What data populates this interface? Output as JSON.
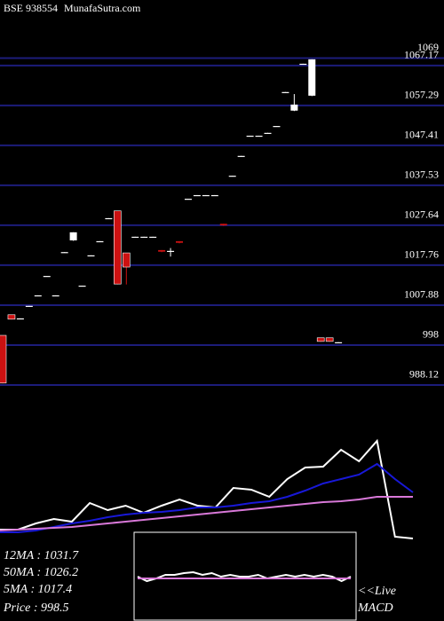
{
  "chart_data": [
    {
      "type": "candlestick",
      "title": "BSE 938554",
      "subtitle": "MunafaSutra.com",
      "open": [
        1000.4,
        1005.5,
        1004.6,
        1007.7,
        1010.3,
        1015.1,
        1010.3,
        1021,
        1023.9,
        1012.7,
        1020.2,
        1023.7,
        1029.4,
        1031.2,
        1020.8,
        1024.8,
        1024.8,
        1024.8,
        1021.5,
        1021.3,
        1023.7,
        1034.2,
        1035.1,
        1035.1,
        1035.1,
        1028,
        1039.9,
        1044.8,
        1049.8,
        1049.8,
        1050.5,
        1052.2,
        1060.6,
        1056,
        1067.6,
        1059.7,
        999.8,
        999.8,
        998.7
      ],
      "high": [
        1000.4,
        1005.5,
        1004.6,
        1007.7,
        1010.3,
        1015.1,
        1010.3,
        1021,
        1025.9,
        1012.7,
        1020.2,
        1023.7,
        1029.4,
        1031.2,
        1020.8,
        1024.8,
        1024.8,
        1024.8,
        1021.5,
        1022,
        1023.7,
        1034.2,
        1035.1,
        1035.1,
        1035.1,
        1028,
        1039.9,
        1044.8,
        1049.8,
        1049.8,
        1050.5,
        1052.2,
        1060.6,
        1060.1,
        1067.6,
        1068.7,
        999.8,
        999.8,
        998.7
      ],
      "low": [
        988.6,
        1004.4,
        1004.6,
        1007.7,
        1010.3,
        1015.1,
        1010.3,
        1021,
        1023.9,
        1012.7,
        1020.2,
        1023.7,
        1029.4,
        1013.1,
        1013.1,
        1024.8,
        1024.8,
        1024.8,
        1021.1,
        1020,
        1023.3,
        1034.2,
        1035.1,
        1035.1,
        1035.1,
        1027.6,
        1039.9,
        1044.8,
        1049.8,
        1049.8,
        1050.5,
        1052.2,
        1060.6,
        1056,
        1067.6,
        1059.7,
        998.9,
        998.9,
        998.7
      ],
      "close": [
        988.6,
        1004.4,
        1004.6,
        1007.7,
        1010.3,
        1015.1,
        1010.3,
        1021,
        1025.9,
        1012.7,
        1020.2,
        1023.7,
        1029.4,
        1013.1,
        1017.3,
        1024.8,
        1024.8,
        1024.8,
        1021.1,
        1021.3,
        1023.3,
        1034.2,
        1035.1,
        1035.1,
        1035.1,
        1027.6,
        1039.9,
        1044.8,
        1049.8,
        1049.8,
        1050.5,
        1052.2,
        1060.6,
        1057.5,
        1067.6,
        1068.7,
        998.9,
        998.9,
        998.7
      ],
      "up_color": "#ffffff",
      "down_color": "#cc1111",
      "grid_color": "#1c1c7a",
      "ylim": [
        984.6,
        1072.4
      ],
      "yticks": [
        1069,
        1067.17,
        1057.29,
        1047.41,
        1037.53,
        1027.64,
        1017.76,
        1007.88,
        998,
        988.12
      ]
    },
    {
      "type": "line",
      "ylim": [
        0,
        100
      ],
      "annotations": [
        "12MA : 1031.7",
        "50MA : 1026.2",
        "5MA : 1017.4",
        "Price  : 998.5"
      ],
      "series": [
        {
          "color": "#ffffff",
          "values": [
            10.8,
            10.8,
            16.7,
            20.8,
            18.3,
            35.8,
            29.2,
            33.3,
            26.7,
            33.3,
            39.2,
            33.3,
            31.7,
            50,
            48.3,
            41.7,
            58.3,
            69.2,
            70,
            85.8,
            75,
            94.2,
            4.2,
            2.5
          ]
        },
        {
          "color": "#1818d8",
          "values": [
            8.3,
            8.3,
            10,
            13.3,
            16.7,
            19.2,
            22.5,
            25,
            26.7,
            27.5,
            29.2,
            31.7,
            31.7,
            33.3,
            35.8,
            37.5,
            41.7,
            47.5,
            54.2,
            58.3,
            62.5,
            72.5,
            58.3,
            45.8
          ]
        },
        {
          "color": "#d878d8",
          "values": [
            10,
            10.8,
            11.7,
            12.5,
            13.3,
            15,
            16.7,
            18.3,
            20,
            21.7,
            23.3,
            25,
            26.7,
            28.3,
            30,
            31.7,
            33.3,
            35,
            36.7,
            37.5,
            39.2,
            41.7,
            41.7,
            41.7
          ]
        }
      ]
    },
    {
      "type": "line",
      "title": "MACD",
      "subtitle": "<<Live",
      "ylim": [
        0,
        100
      ],
      "series": [
        {
          "color": "#ffffff",
          "values": [
            50,
            45,
            48,
            52,
            52,
            54,
            55,
            52,
            54,
            50,
            52,
            50,
            50,
            52,
            48,
            50,
            52,
            50,
            52,
            50,
            52,
            50,
            45,
            50
          ]
        },
        {
          "color": "#d878d8",
          "values": [
            48,
            48,
            48,
            48,
            48,
            48,
            48,
            48,
            48,
            48,
            48,
            48,
            48,
            48,
            48,
            48,
            48,
            48,
            48,
            48,
            48,
            48,
            48,
            48
          ]
        }
      ]
    }
  ]
}
